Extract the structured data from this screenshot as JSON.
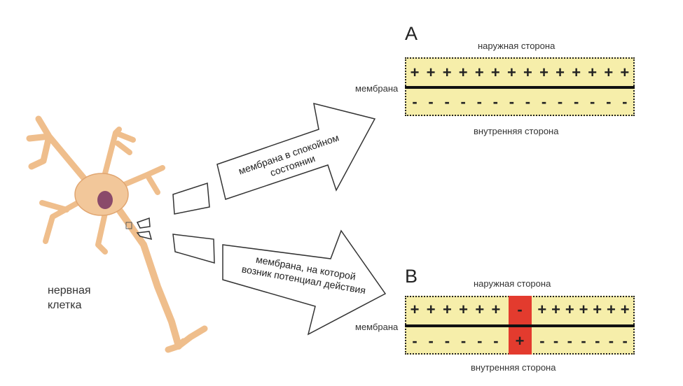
{
  "neuron": {
    "label_line1": "нервная",
    "label_line2": "клетка"
  },
  "arrow_top": {
    "line1": "мембрана в спокойном",
    "line2": "состоянии"
  },
  "arrow_bottom": {
    "line1": "мембрана, на которой",
    "line2": "возник потенциал действия"
  },
  "panel_a": {
    "letter": "А",
    "outer": "наружная сторона",
    "inner": "внутренняя сторона",
    "membrane": "мембрана",
    "top_signs": [
      "+",
      "+",
      "+",
      "+",
      "+",
      "+",
      "+",
      "+",
      "+",
      "+",
      "+",
      "+",
      "+",
      "+"
    ],
    "bottom_signs": [
      "-",
      "-",
      "-",
      "-",
      "-",
      "-",
      "-",
      "-",
      "-",
      "-",
      "-",
      "-",
      "-",
      "-"
    ]
  },
  "panel_b": {
    "letter": "В",
    "outer": "наружная сторона",
    "inner": "внутренняя сторона",
    "membrane": "мембрана",
    "top_signs_left": [
      "+",
      "+",
      "+",
      "+",
      "+",
      "+"
    ],
    "top_signs_right": [
      "+",
      "+",
      "+",
      "+",
      "+",
      "+",
      "+"
    ],
    "bottom_signs_left": [
      "-",
      "-",
      "-",
      "-",
      "-",
      "-"
    ],
    "bottom_signs_right": [
      "-",
      "-",
      "-",
      "-",
      "-",
      "-",
      "-"
    ],
    "depolarized_top": "-",
    "depolarized_bottom": "+",
    "highlight_color": "#e33b2e"
  },
  "colors": {
    "membrane_band": "#f6eeaa",
    "neuron": "#f2c79a",
    "nucleus": "#8a4a6a"
  }
}
